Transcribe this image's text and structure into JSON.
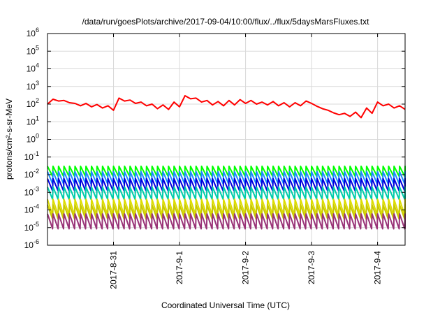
{
  "chart_data": {
    "type": "line",
    "title": "/data/run/goesPlots/archive/2017-09-04/10:00/flux/../flux/5daysMarsFluxes.txt",
    "xlabel": "Coordinated Universal Time (UTC)",
    "ylabel": "protons/cm²-s-sr-MeV",
    "y_scale": "log",
    "ylim": [
      1e-06,
      1000000.0
    ],
    "y_ticks": [
      {
        "exp": -6,
        "label": "10",
        "sup": "-6"
      },
      {
        "exp": -5,
        "label": "10",
        "sup": "-5"
      },
      {
        "exp": -4,
        "label": "10",
        "sup": "-4"
      },
      {
        "exp": -3,
        "label": "10",
        "sup": "-3"
      },
      {
        "exp": -2,
        "label": "10",
        "sup": "-2"
      },
      {
        "exp": -1,
        "label": "10",
        "sup": "-1"
      },
      {
        "exp": 0,
        "label": "10",
        "sup": "0"
      },
      {
        "exp": 1,
        "label": "10",
        "sup": "1"
      },
      {
        "exp": 2,
        "label": "10",
        "sup": "2"
      },
      {
        "exp": 3,
        "label": "10",
        "sup": "3"
      },
      {
        "exp": 4,
        "label": "10",
        "sup": "4"
      },
      {
        "exp": 5,
        "label": "10",
        "sup": "5"
      },
      {
        "exp": 6,
        "label": "10",
        "sup": "6"
      }
    ],
    "xlim": [
      "2017-08-30 00:00",
      "2017-09-04 10:00"
    ],
    "x_ticks": [
      {
        "date": "2017-08-31",
        "label": "2017-8-31"
      },
      {
        "date": "2017-09-01",
        "label": "2017-9-1"
      },
      {
        "date": "2017-09-02",
        "label": "2017-9-2"
      },
      {
        "date": "2017-09-03",
        "label": "2017-9-3"
      },
      {
        "date": "2017-09-04",
        "label": "2017-9-4"
      }
    ],
    "grid": true,
    "legend": "none",
    "series": [
      {
        "color": "#ff0000",
        "values": [
          [
            "2017-08-30 00:00",
            100
          ],
          [
            "2017-08-30 02:00",
            190
          ],
          [
            "2017-08-30 04:00",
            150
          ],
          [
            "2017-08-30 06:00",
            160
          ],
          [
            "2017-08-30 08:00",
            120
          ],
          [
            "2017-08-30 10:00",
            110
          ],
          [
            "2017-08-30 12:00",
            80
          ],
          [
            "2017-08-30 14:00",
            110
          ],
          [
            "2017-08-30 16:00",
            70
          ],
          [
            "2017-08-30 18:00",
            95
          ],
          [
            "2017-08-30 20:00",
            60
          ],
          [
            "2017-08-30 22:00",
            80
          ],
          [
            "2017-08-31 00:00",
            45
          ],
          [
            "2017-08-31 02:00",
            220
          ],
          [
            "2017-08-31 04:00",
            150
          ],
          [
            "2017-08-31 06:00",
            170
          ],
          [
            "2017-08-31 08:00",
            110
          ],
          [
            "2017-08-31 10:00",
            130
          ],
          [
            "2017-08-31 12:00",
            80
          ],
          [
            "2017-08-31 14:00",
            100
          ],
          [
            "2017-08-31 16:00",
            55
          ],
          [
            "2017-08-31 18:00",
            90
          ],
          [
            "2017-08-31 20:00",
            50
          ],
          [
            "2017-08-31 22:00",
            130
          ],
          [
            "2017-09-01 00:00",
            70
          ],
          [
            "2017-09-01 02:00",
            300
          ],
          [
            "2017-09-01 04:00",
            200
          ],
          [
            "2017-09-01 06:00",
            220
          ],
          [
            "2017-09-01 08:00",
            130
          ],
          [
            "2017-09-01 10:00",
            160
          ],
          [
            "2017-09-01 12:00",
            90
          ],
          [
            "2017-09-01 14:00",
            140
          ],
          [
            "2017-09-01 16:00",
            80
          ],
          [
            "2017-09-01 18:00",
            160
          ],
          [
            "2017-09-01 20:00",
            90
          ],
          [
            "2017-09-01 22:00",
            180
          ],
          [
            "2017-09-02 00:00",
            110
          ],
          [
            "2017-09-02 02:00",
            160
          ],
          [
            "2017-09-02 04:00",
            100
          ],
          [
            "2017-09-02 06:00",
            130
          ],
          [
            "2017-09-02 08:00",
            90
          ],
          [
            "2017-09-02 10:00",
            140
          ],
          [
            "2017-09-02 12:00",
            80
          ],
          [
            "2017-09-02 14:00",
            120
          ],
          [
            "2017-09-02 16:00",
            70
          ],
          [
            "2017-09-02 18:00",
            120
          ],
          [
            "2017-09-02 20:00",
            80
          ],
          [
            "2017-09-02 22:00",
            150
          ],
          [
            "2017-09-03 00:00",
            110
          ],
          [
            "2017-09-03 02:00",
            75
          ],
          [
            "2017-09-03 04:00",
            55
          ],
          [
            "2017-09-03 06:00",
            45
          ],
          [
            "2017-09-03 08:00",
            32
          ],
          [
            "2017-09-03 10:00",
            25
          ],
          [
            "2017-09-03 12:00",
            30
          ],
          [
            "2017-09-03 14:00",
            20
          ],
          [
            "2017-09-03 16:00",
            35
          ],
          [
            "2017-09-03 18:00",
            17
          ],
          [
            "2017-09-03 20:00",
            60
          ],
          [
            "2017-09-03 22:00",
            30
          ],
          [
            "2017-09-04 00:00",
            130
          ],
          [
            "2017-09-04 02:00",
            80
          ],
          [
            "2017-09-04 04:00",
            100
          ],
          [
            "2017-09-04 06:00",
            60
          ],
          [
            "2017-09-04 08:00",
            80
          ],
          [
            "2017-09-04 10:00",
            50
          ]
        ]
      },
      {
        "color": "#00ff00",
        "base": 0.03,
        "low": 0.008
      },
      {
        "color": "#1a8cff",
        "base": 0.015,
        "low": 0.003
      },
      {
        "color": "#0000dd",
        "base": 0.006,
        "low": 0.0012
      },
      {
        "color": "#00ccaa",
        "base": 0.002,
        "low": 0.0004
      },
      {
        "color": "#dddd00",
        "base": 0.0004,
        "low": 5e-05
      },
      {
        "color": "#c8c800",
        "base": 0.0002,
        "low": 3e-05
      },
      {
        "color": "#993377",
        "base": 6e-05,
        "low": 8.5e-06
      }
    ]
  }
}
